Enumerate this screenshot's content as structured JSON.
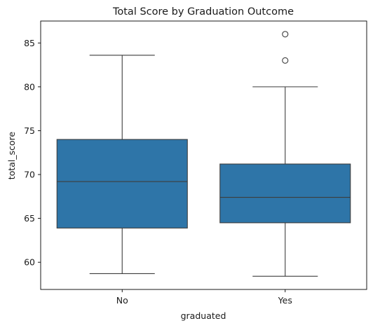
{
  "chart_data": {
    "type": "box",
    "title": "Total Score by Graduation Outcome",
    "xlabel": "graduated",
    "ylabel": "total_score",
    "categories": [
      "No",
      "Yes"
    ],
    "ylim": [
      56.9,
      87.5
    ],
    "yticks": [
      60,
      65,
      70,
      75,
      80,
      85
    ],
    "box_color": "#2e75a8",
    "line_color": "#3d3d3d",
    "grid": false,
    "boxes": [
      {
        "category": "No",
        "whisker_low": 58.7,
        "q1": 63.9,
        "median": 69.2,
        "q3": 74.0,
        "whisker_high": 83.6,
        "outliers": []
      },
      {
        "category": "Yes",
        "whisker_low": 58.4,
        "q1": 64.5,
        "median": 67.4,
        "q3": 71.2,
        "whisker_high": 80.0,
        "outliers": [
          83.0,
          86.0
        ]
      }
    ]
  }
}
